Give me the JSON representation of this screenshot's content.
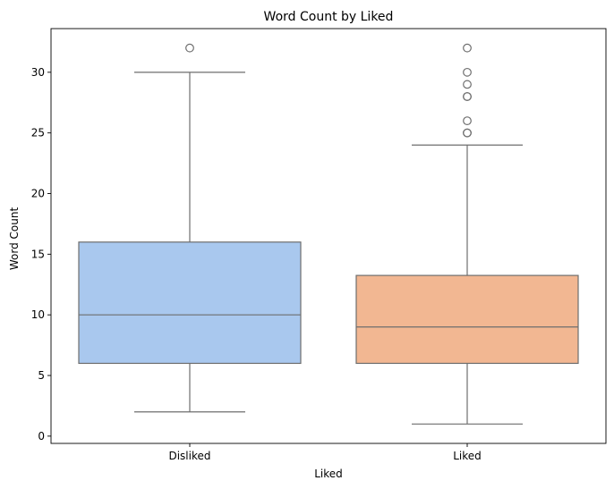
{
  "chart_data": {
    "type": "box",
    "title": "Word Count by Liked",
    "xlabel": "Liked",
    "ylabel": "Word Count",
    "categories": [
      "Disliked",
      "Liked"
    ],
    "ylim": [
      -0.6,
      33.6
    ],
    "yticks": [
      0,
      5,
      10,
      15,
      20,
      25,
      30
    ],
    "grid": false,
    "boxes": [
      {
        "category": "Disliked",
        "whisker_low": 2,
        "q1": 6,
        "median": 10,
        "q3": 16,
        "whisker_high": 30,
        "outliers": [
          32
        ],
        "color": "#a9c8ee"
      },
      {
        "category": "Liked",
        "whisker_low": 1,
        "q1": 6,
        "median": 9,
        "q3": 13.25,
        "whisker_high": 24,
        "outliers": [
          25,
          25,
          26,
          28,
          28,
          29,
          30,
          32
        ],
        "color": "#f2b792"
      }
    ],
    "line_color": "#6e6e6e"
  }
}
